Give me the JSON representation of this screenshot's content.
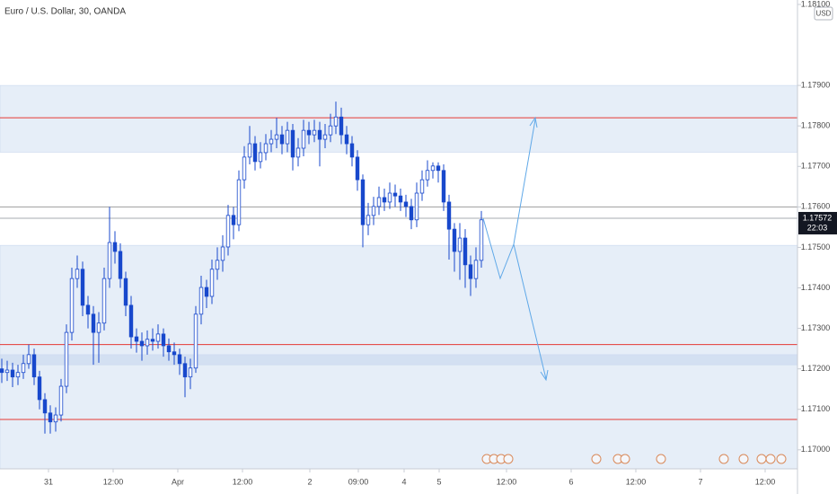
{
  "chart_data": {
    "type": "candlestick",
    "title": "Euro / U.S. Dollar, 30, OANDA",
    "currency": "USD",
    "up_color": "#ffffff",
    "color": "#1848cc",
    "grid": false,
    "xlim": [
      0,
      296
    ],
    "ylim": [
      1.16953,
      1.18111
    ],
    "yticks": [
      {
        "value": 1.17,
        "label": "1.17000"
      },
      {
        "value": 1.171,
        "label": "1.17100"
      },
      {
        "value": 1.172,
        "label": "1.17200"
      },
      {
        "value": 1.173,
        "label": "1.17300"
      },
      {
        "value": 1.174,
        "label": "1.17400"
      },
      {
        "value": 1.175,
        "label": "1.17500"
      },
      {
        "value": 1.176,
        "label": "1.17600"
      },
      {
        "value": 1.177,
        "label": "1.17700"
      },
      {
        "value": 1.178,
        "label": "1.17800"
      },
      {
        "value": 1.179,
        "label": "1.17900"
      },
      {
        "value": 1.181,
        "label": "1.18100"
      }
    ],
    "xticks": [
      {
        "value": 18,
        "label": "31"
      },
      {
        "value": 42,
        "label": "12:00"
      },
      {
        "value": 66,
        "label": "Apr"
      },
      {
        "value": 90,
        "label": "12:00"
      },
      {
        "value": 115,
        "label": "2"
      },
      {
        "value": 133,
        "label": "09:00"
      },
      {
        "value": 150,
        "label": "4"
      },
      {
        "value": 163,
        "label": "5"
      },
      {
        "value": 188,
        "label": "12:00"
      },
      {
        "value": 212,
        "label": "6"
      },
      {
        "value": 236,
        "label": "12:00"
      },
      {
        "value": 260,
        "label": "7"
      },
      {
        "value": 284,
        "label": "12:00"
      }
    ],
    "last_price": 1.17572,
    "countdown": "22:03",
    "hlines": [
      {
        "value": 1.1782,
        "color": "#e53935"
      },
      {
        "value": 1.1726,
        "color": "#e53935"
      },
      {
        "value": 1.17075,
        "color": "#e53935"
      },
      {
        "value": 1.176,
        "color": "#9e9e9e"
      }
    ],
    "zones": [
      {
        "from": 1.17735,
        "to": 1.179,
        "color": "#e6eef8"
      },
      {
        "from": 1.16953,
        "to": 1.17505,
        "color": "#e6eef8"
      },
      {
        "from": 1.1721,
        "to": 1.17235,
        "color": "#d3e0f2"
      }
    ],
    "x": [
      0,
      2,
      4,
      6,
      8,
      10,
      12,
      14,
      16,
      18,
      20,
      22,
      24,
      26,
      28,
      30,
      32,
      34,
      36,
      38,
      40,
      42,
      44,
      46,
      48,
      50,
      52,
      54,
      56,
      58,
      60,
      62,
      64,
      66,
      68,
      70,
      72,
      74,
      76,
      78,
      80,
      82,
      84,
      86,
      88,
      90,
      92,
      94,
      96,
      98,
      100,
      102,
      104,
      106,
      108,
      110,
      112,
      114,
      116,
      118,
      120,
      122,
      124,
      126,
      128,
      130,
      132,
      134,
      136,
      138,
      140,
      142,
      144,
      146,
      148,
      150,
      152,
      154,
      156,
      158,
      160,
      162,
      164,
      166,
      168,
      170,
      172,
      174,
      176,
      178
    ],
    "open": [
      1.172,
      1.17191,
      1.17197,
      1.1718,
      1.17191,
      1.17213,
      1.17235,
      1.1718,
      1.17124,
      1.17091,
      1.17069,
      1.17086,
      1.17157,
      1.1729,
      1.17423,
      1.17446,
      1.17357,
      1.17335,
      1.1729,
      1.17313,
      1.17423,
      1.17512,
      1.1749,
      1.17423,
      1.17357,
      1.17279,
      1.17268,
      1.17257,
      1.17273,
      1.17268,
      1.17286,
      1.17257,
      1.17242,
      1.17235,
      1.17213,
      1.1718,
      1.17202,
      1.17335,
      1.17401,
      1.17379,
      1.17446,
      1.17468,
      1.17501,
      1.17579,
      1.17556,
      1.17667,
      1.17723,
      1.17756,
      1.17712,
      1.17734,
      1.17756,
      1.17767,
      1.17778,
      1.17756,
      1.17789,
      1.17723,
      1.17745,
      1.17789,
      1.17778,
      1.17789,
      1.17767,
      1.17778,
      1.178,
      1.17822,
      1.17778,
      1.17756,
      1.17723,
      1.17667,
      1.17556,
      1.17579,
      1.17601,
      1.17623,
      1.17612,
      1.17634,
      1.17627,
      1.17612,
      1.17601,
      1.17568,
      1.17634,
      1.17667,
      1.1769,
      1.17701,
      1.1769,
      1.17612,
      1.17545,
      1.1749,
      1.17523,
      1.17457,
      1.17423,
      1.17468
    ],
    "high": [
      1.17225,
      1.1722,
      1.17215,
      1.1721,
      1.17235,
      1.1726,
      1.1725,
      1.17195,
      1.1714,
      1.1711,
      1.17105,
      1.17175,
      1.1731,
      1.1745,
      1.1748,
      1.17465,
      1.1738,
      1.17355,
      1.1734,
      1.1745,
      1.176,
      1.1754,
      1.1751,
      1.1744,
      1.1738,
      1.173,
      1.1729,
      1.17295,
      1.173,
      1.1731,
      1.173,
      1.17275,
      1.17265,
      1.1725,
      1.1723,
      1.17225,
      1.17355,
      1.1743,
      1.1742,
      1.1747,
      1.175,
      1.1753,
      1.17605,
      1.176,
      1.1769,
      1.1775,
      1.178,
      1.17775,
      1.1776,
      1.1778,
      1.1779,
      1.1782,
      1.178,
      1.1781,
      1.17805,
      1.1777,
      1.17815,
      1.1781,
      1.17815,
      1.1781,
      1.17805,
      1.1783,
      1.1786,
      1.17845,
      1.178,
      1.17775,
      1.1774,
      1.1768,
      1.1761,
      1.17625,
      1.1765,
      1.17645,
      1.1766,
      1.17655,
      1.17645,
      1.1763,
      1.1762,
      1.1766,
      1.1769,
      1.17715,
      1.1771,
      1.1771,
      1.17705,
      1.1763,
      1.1756,
      1.1756,
      1.17545,
      1.1748,
      1.175,
      1.1759
    ],
    "low": [
      1.17165,
      1.1717,
      1.17155,
      1.1716,
      1.17175,
      1.172,
      1.1716,
      1.171,
      1.1704,
      1.1704,
      1.17045,
      1.1707,
      1.1714,
      1.1727,
      1.174,
      1.1733,
      1.173,
      1.1721,
      1.17215,
      1.17295,
      1.174,
      1.1746,
      1.174,
      1.1733,
      1.1725,
      1.1724,
      1.1722,
      1.17235,
      1.17245,
      1.1725,
      1.1723,
      1.1722,
      1.1721,
      1.17185,
      1.1713,
      1.1715,
      1.1719,
      1.1731,
      1.1735,
      1.1736,
      1.1742,
      1.1744,
      1.1748,
      1.1752,
      1.1754,
      1.17645,
      1.17705,
      1.1769,
      1.17695,
      1.17715,
      1.17735,
      1.17745,
      1.1773,
      1.17735,
      1.1769,
      1.177,
      1.17725,
      1.17755,
      1.1776,
      1.177,
      1.17745,
      1.1776,
      1.1778,
      1.17755,
      1.1773,
      1.177,
      1.1764,
      1.175,
      1.1753,
      1.17555,
      1.1758,
      1.1759,
      1.17595,
      1.176,
      1.1759,
      1.17575,
      1.17545,
      1.1755,
      1.17615,
      1.1765,
      1.1767,
      1.1766,
      1.1759,
      1.1747,
      1.1744,
      1.1742,
      1.174,
      1.1738,
      1.174,
      1.1745
    ],
    "close": [
      1.17191,
      1.17197,
      1.1718,
      1.17191,
      1.17213,
      1.17235,
      1.1718,
      1.17124,
      1.17091,
      1.17069,
      1.17086,
      1.17157,
      1.1729,
      1.17423,
      1.17446,
      1.17357,
      1.17335,
      1.1729,
      1.17313,
      1.17423,
      1.17512,
      1.1749,
      1.17423,
      1.17357,
      1.17279,
      1.17268,
      1.17257,
      1.17273,
      1.17268,
      1.17286,
      1.17257,
      1.17242,
      1.17235,
      1.17213,
      1.1718,
      1.17202,
      1.17335,
      1.17401,
      1.17379,
      1.17446,
      1.17468,
      1.17501,
      1.17579,
      1.17556,
      1.17667,
      1.17723,
      1.17756,
      1.17712,
      1.17734,
      1.17756,
      1.17767,
      1.17778,
      1.17756,
      1.17789,
      1.17723,
      1.17745,
      1.17789,
      1.17778,
      1.17789,
      1.17767,
      1.17778,
      1.178,
      1.17822,
      1.17778,
      1.17756,
      1.17723,
      1.17667,
      1.17556,
      1.17579,
      1.17601,
      1.17623,
      1.17612,
      1.17634,
      1.17627,
      1.17612,
      1.17601,
      1.17568,
      1.17634,
      1.17667,
      1.1769,
      1.17701,
      1.1769,
      1.17612,
      1.17545,
      1.1749,
      1.17523,
      1.17457,
      1.17423,
      1.17468,
      1.17568
    ]
  }
}
